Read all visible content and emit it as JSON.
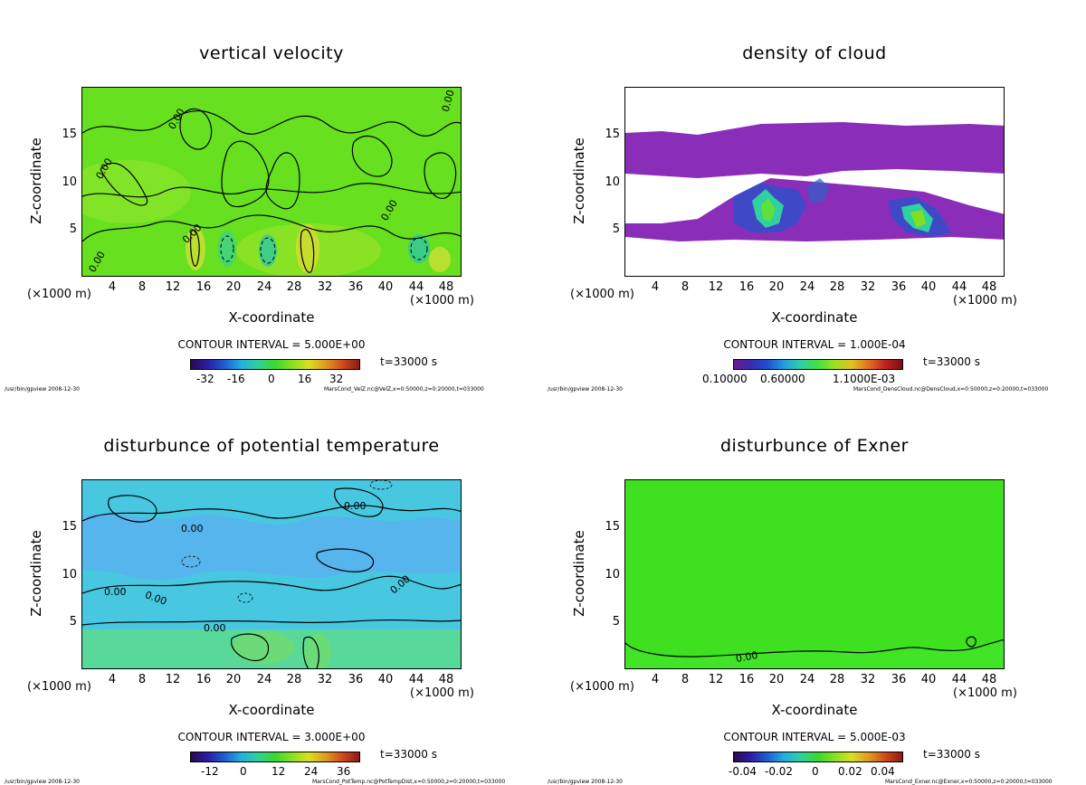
{
  "footer_left": "/usr/bin/gpview  2008-12-30",
  "chart_data": [
    {
      "type": "heatmap",
      "title": "vertical velocity",
      "xlabel": "X-coordinate",
      "ylabel": "Z-coordinate",
      "xunit_left": "(×1000 m)",
      "xunit_right": "(×1000 m)",
      "xlim": [
        0,
        50
      ],
      "ylim": [
        0,
        20
      ],
      "xticks": [
        "4",
        "8",
        "12",
        "16",
        "20",
        "24",
        "28",
        "32",
        "36",
        "40",
        "44",
        "48"
      ],
      "yticks": [
        "5",
        "10",
        "15"
      ],
      "contour_interval": "CONTOUR INTERVAL = 5.000E+00",
      "colorbar_ticks": [
        "-32",
        "-16",
        "0",
        "16",
        "32"
      ],
      "colorbar_range": [
        -40,
        40
      ],
      "contour_labels": [
        "0.00",
        "0.00",
        "0.00",
        "0.00",
        "0.00",
        "0.00"
      ],
      "time": "t=33000 s",
      "footer": "MarsCond_VelZ.nc@VelZ,x=0:50000,z=0:20000,t=033000",
      "colors": {
        "background": "#66e01f",
        "cloud": "#8a2db8"
      },
      "colorbar_palette": [
        "#2a0a4a",
        "#2b1ca8",
        "#1f5fd0",
        "#21b0e0",
        "#30d09a",
        "#39d930",
        "#8ae020",
        "#d8e020",
        "#e09a20",
        "#d04a1a",
        "#8a1a1a"
      ]
    },
    {
      "type": "heatmap",
      "title": "density of cloud",
      "xlabel": "X-coordinate",
      "ylabel": "Z-coordinate",
      "xunit_left": "(×1000 m)",
      "xunit_right": "(×1000 m)",
      "xlim": [
        0,
        50
      ],
      "ylim": [
        0,
        20
      ],
      "xticks": [
        "4",
        "8",
        "12",
        "16",
        "20",
        "24",
        "28",
        "32",
        "36",
        "40",
        "44",
        "48"
      ],
      "yticks": [
        "5",
        "10",
        "15"
      ],
      "contour_interval": "CONTOUR INTERVAL = 1.000E-04",
      "colorbar_ticks": [
        "0.10000",
        "0.60000",
        "1.1000E-03"
      ],
      "colorbar_range": [
        0,
        0.0012
      ],
      "contour_labels": [],
      "time": "t=33000 s",
      "footer": "MarsCond_DensCloud.nc@DensCloud,x=0:50000,z=0:20000,t=033000",
      "colors": {
        "background": "#ffffff",
        "cloud": "#8a2db8"
      },
      "colorbar_palette": [
        "#6a1a8a",
        "#3a2ab0",
        "#2050d0",
        "#20a0e0",
        "#30d0a0",
        "#40e040",
        "#a0e020",
        "#e0c020",
        "#e07020",
        "#c02020",
        "#7a1010"
      ]
    },
    {
      "type": "heatmap",
      "title": "disturbunce of potential temperature",
      "xlabel": "X-coordinate",
      "ylabel": "Z-coordinate",
      "xunit_left": "(×1000 m)",
      "xunit_right": "(×1000 m)",
      "xlim": [
        0,
        50
      ],
      "ylim": [
        0,
        20
      ],
      "xticks": [
        "4",
        "8",
        "12",
        "16",
        "20",
        "24",
        "28",
        "32",
        "36",
        "40",
        "44",
        "48"
      ],
      "yticks": [
        "5",
        "10",
        "15"
      ],
      "contour_interval": "CONTOUR INTERVAL = 3.000E+00",
      "colorbar_ticks": [
        "-12",
        "0",
        "12",
        "24",
        "36"
      ],
      "colorbar_range": [
        -18,
        42
      ],
      "contour_labels": [
        "0.00",
        "0.00",
        "0.00",
        "0.00",
        "0.00",
        "0.00"
      ],
      "time": "t=33000 s",
      "footer": "MarsCond_PotTemp.nc@PotTempDist,x=0:50000,z=0:20000,t=033000",
      "colors": {
        "background": "#40d8b8",
        "cloud": "#8a2db8"
      },
      "colorbar_palette": [
        "#2a0a4a",
        "#2b1ca8",
        "#1f5fd0",
        "#21b0e0",
        "#30d09a",
        "#39d930",
        "#8ae020",
        "#d8e020",
        "#e09a20",
        "#d04a1a",
        "#8a1a1a"
      ]
    },
    {
      "type": "heatmap",
      "title": "disturbunce of Exner",
      "xlabel": "X-coordinate",
      "ylabel": "Z-coordinate",
      "xunit_left": "(×1000 m)",
      "xunit_right": "(×1000 m)",
      "xlim": [
        0,
        50
      ],
      "ylim": [
        0,
        20
      ],
      "xticks": [
        "4",
        "8",
        "12",
        "16",
        "20",
        "24",
        "28",
        "32",
        "36",
        "40",
        "44",
        "48"
      ],
      "yticks": [
        "5",
        "10",
        "15"
      ],
      "contour_interval": "CONTOUR INTERVAL = 5.000E-03",
      "colorbar_ticks": [
        "-0.04",
        "-0.02",
        "0",
        "0.02",
        "0.04"
      ],
      "colorbar_range": [
        -0.05,
        0.05
      ],
      "contour_labels": [
        "0.00"
      ],
      "time": "t=33000 s",
      "footer": "MarsCond_Exner.nc@Exner,x=0:50000,z=0:20000,t=033000",
      "colors": {
        "background": "#3ee020",
        "cloud": "#8a2db8"
      },
      "colorbar_palette": [
        "#2a0a4a",
        "#2b1ca8",
        "#1f5fd0",
        "#21b0e0",
        "#30d09a",
        "#39d930",
        "#8ae020",
        "#d8e020",
        "#e09a20",
        "#d04a1a",
        "#8a1a1a"
      ]
    }
  ]
}
